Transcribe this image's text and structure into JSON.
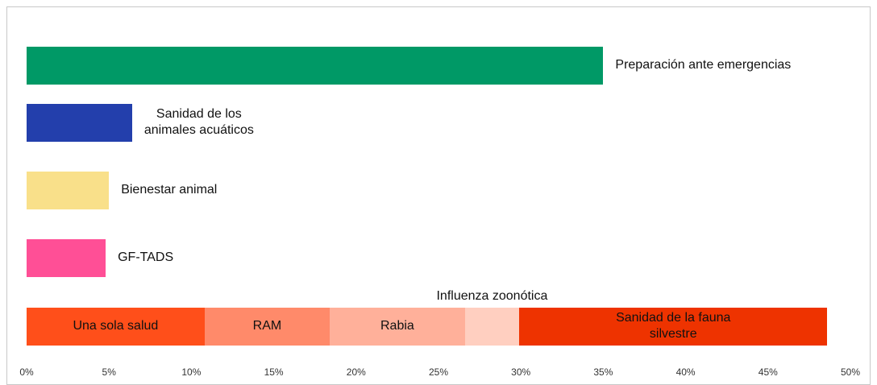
{
  "chart_data": {
    "type": "bar",
    "orientation": "horizontal",
    "stacked": true,
    "categories": [
      null,
      null,
      null,
      null,
      null
    ],
    "series": [
      {
        "name": "Preparación ante emergencias",
        "color": "#009966",
        "values": [
          35,
          null,
          null,
          null,
          null
        ]
      },
      {
        "name": "Sanidad de los\nanimales acuáticos",
        "color": "#233fac",
        "values": [
          null,
          6.4,
          null,
          null,
          null
        ]
      },
      {
        "name": "Bienestar animal",
        "color": "#f9e08a",
        "values": [
          null,
          null,
          5.0,
          null,
          null
        ]
      },
      {
        "name": "GF-TADS",
        "color": "#ff4f96",
        "values": [
          null,
          null,
          null,
          4.8,
          null
        ]
      },
      {
        "name": "Una sola salud",
        "color": "#ff4f1a",
        "values": [
          null,
          null,
          null,
          null,
          10.8
        ]
      },
      {
        "name": "RAM",
        "color": "#ff8a6a",
        "values": [
          null,
          null,
          null,
          null,
          7.6
        ]
      },
      {
        "name": "Rabia",
        "color": "#ffb09a",
        "values": [
          null,
          null,
          null,
          null,
          8.2
        ]
      },
      {
        "name": "Influenza zoonótica",
        "color": "#ffcfc0",
        "values": [
          null,
          null,
          null,
          null,
          3.3
        ]
      },
      {
        "name": "Sanidad de la fauna\nsilvestre",
        "color": "#ee3300",
        "values": [
          null,
          null,
          null,
          null,
          18.7
        ]
      }
    ],
    "xlim": [
      0,
      50
    ],
    "xticks": [
      {
        "value": 0,
        "label": "0%"
      },
      {
        "value": 5,
        "label": "5%"
      },
      {
        "value": 10,
        "label": "10%"
      },
      {
        "value": 15,
        "label": "15%"
      },
      {
        "value": 20,
        "label": "20%"
      },
      {
        "value": 25,
        "label": "25%"
      },
      {
        "value": 30,
        "label": "30%"
      },
      {
        "value": 35,
        "label": "35%"
      },
      {
        "value": 40,
        "label": "40%"
      },
      {
        "value": 45,
        "label": "45%"
      },
      {
        "value": 50,
        "label": "50%"
      }
    ]
  }
}
